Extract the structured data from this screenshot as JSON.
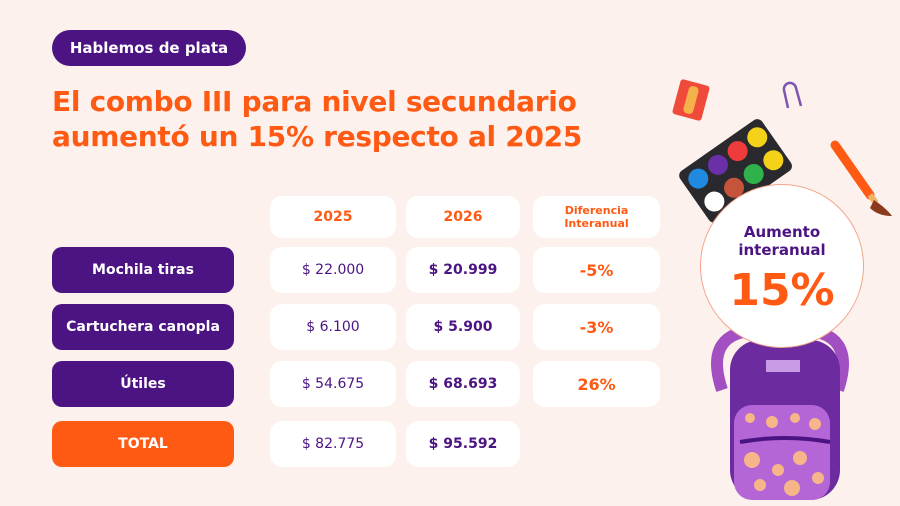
{
  "badge": "Hablemos de plata",
  "title": {
    "line1": "El combo III para nivel secundario",
    "line2": "aumentó un 15% respecto al 2025"
  },
  "table": {
    "headers": [
      "2025",
      "2026",
      "Diferencia Interanual"
    ],
    "rows": [
      {
        "label": "Mochila tiras",
        "y2025": "$ 22.000",
        "y2026": "$ 20.999",
        "diff": "-5%"
      },
      {
        "label": "Cartuchera canopla",
        "y2025": "$ 6.100",
        "y2026": "$ 5.900",
        "diff": "-3%"
      },
      {
        "label": "Útiles",
        "y2025": "$ 54.675",
        "y2026": "$ 68.693",
        "diff": "26%"
      },
      {
        "label": "TOTAL",
        "y2025": "$ 82.775",
        "y2026": "$ 95.592"
      }
    ]
  },
  "highlight": {
    "label": "Aumento interanual",
    "value": "15%"
  },
  "colors": {
    "purple": "#4b1482",
    "orange": "#ff5a14",
    "background": "#fcf1ec"
  }
}
